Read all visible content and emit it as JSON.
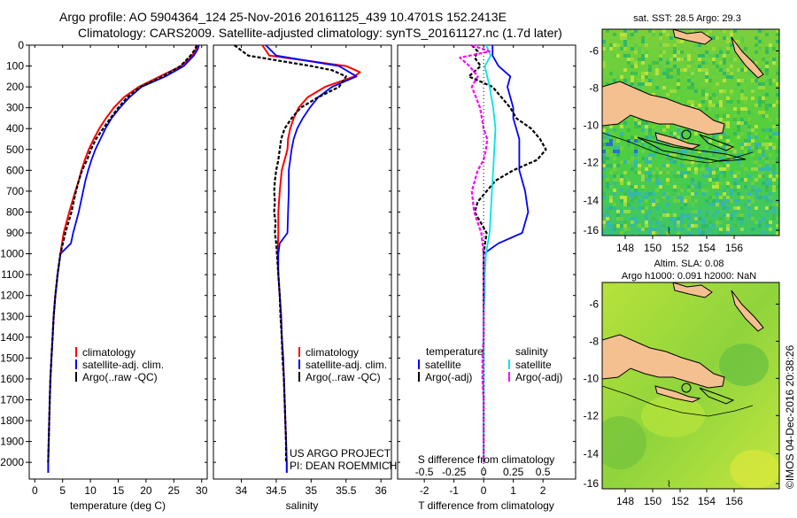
{
  "header": {
    "line1": "Argo profile: AO 5904364_124 25-Nov-2016 20161125_439 10.4701S 152.2413E",
    "line2": "Climatology: CARS2009. Satellite-adjusted climatology: synTS_20161127.nc (1.7d later)"
  },
  "colors": {
    "climatology": "#ff0000",
    "satellite": "#0000ff",
    "argo": "#000000",
    "sat_sal": "#00e5e5",
    "argo_sal": "#ff00ff",
    "land": "#f5c090"
  },
  "chart_data": [
    {
      "type": "line",
      "id": "temperature",
      "xlabel": "temperature (deg C)",
      "ylabel": "",
      "xlim": [
        -1,
        31
      ],
      "ylim": [
        2080,
        0
      ],
      "xticks": [
        0,
        5,
        10,
        15,
        20,
        25,
        30
      ],
      "yticks": [
        0,
        100,
        200,
        300,
        400,
        500,
        600,
        700,
        800,
        900,
        1000,
        1100,
        1200,
        1300,
        1400,
        1500,
        1600,
        1700,
        1800,
        1900,
        2000
      ],
      "legend": [
        "climatology",
        "satellite-adj. clim.",
        "Argo(..raw -QC)"
      ],
      "series": [
        {
          "name": "climatology",
          "depth": [
            0,
            20,
            50,
            100,
            150,
            200,
            250,
            300,
            350,
            400,
            450,
            500,
            550,
            600,
            650,
            700,
            800,
            900,
            1000,
            1100,
            1200,
            1300,
            1400,
            1500,
            1600,
            1700,
            1800,
            1900,
            2000,
            2050
          ],
          "values": [
            29.2,
            29.0,
            28.3,
            26.3,
            22.5,
            18.7,
            16.0,
            14.2,
            12.8,
            11.6,
            10.6,
            9.7,
            9.0,
            8.4,
            7.9,
            7.3,
            6.2,
            5.2,
            4.6,
            4.1,
            3.7,
            3.4,
            3.2,
            3.0,
            2.8,
            2.7,
            2.6,
            2.5,
            2.4,
            2.4
          ]
        },
        {
          "name": "satellite-adj. clim.",
          "depth": [
            0,
            20,
            50,
            100,
            150,
            200,
            250,
            300,
            350,
            400,
            450,
            500,
            550,
            600,
            650,
            700,
            800,
            900,
            950,
            1000,
            1100,
            1200,
            1300,
            1400,
            1500,
            1600,
            1700,
            1800,
            1900,
            2000,
            2050
          ],
          "values": [
            29.5,
            29.3,
            28.6,
            26.8,
            23.5,
            19.2,
            17.0,
            15.3,
            13.8,
            12.7,
            11.8,
            10.9,
            10.2,
            9.6,
            9.1,
            8.7,
            7.9,
            6.9,
            6.5,
            4.6,
            4.1,
            3.7,
            3.4,
            3.2,
            3.0,
            2.8,
            2.7,
            2.6,
            2.5,
            2.4,
            2.4
          ]
        },
        {
          "name": "Argo(..raw -QC)",
          "depth": [
            0,
            20,
            50,
            100,
            150,
            200,
            250,
            300,
            350,
            400,
            450,
            500,
            550,
            600,
            650,
            700,
            800,
            900,
            1000,
            1100,
            1200,
            1300,
            1400,
            1500,
            1600,
            1700,
            1800,
            1900,
            2000
          ],
          "values": [
            29.1,
            28.8,
            28.0,
            26.2,
            23.0,
            19.0,
            16.6,
            15.0,
            13.6,
            12.3,
            11.0,
            10.1,
            9.4,
            8.5,
            7.9,
            7.4,
            6.6,
            5.5,
            4.6,
            4.1,
            3.7,
            3.4,
            3.2,
            3.0,
            2.8,
            2.7,
            2.6,
            2.5,
            2.4
          ]
        }
      ]
    },
    {
      "type": "line",
      "id": "salinity",
      "xlabel": "salinity",
      "xlim": [
        33.6,
        36.15
      ],
      "ylim": [
        2080,
        0
      ],
      "xticks": [
        34,
        34.5,
        35,
        35.5,
        36
      ],
      "legend": [
        "climatology",
        "satellite-adj. clim.",
        "Argo(..raw -QC)"
      ],
      "series": [
        {
          "name": "climatology",
          "depth": [
            0,
            50,
            100,
            130,
            150,
            200,
            250,
            300,
            350,
            400,
            450,
            500,
            550,
            600,
            700,
            800,
            900,
            1000,
            1100,
            1200,
            1300,
            1400,
            1500,
            1600,
            1700,
            1800,
            1900,
            2000,
            2050
          ],
          "values": [
            34.3,
            34.4,
            35.5,
            35.7,
            35.62,
            35.2,
            34.95,
            34.82,
            34.75,
            34.7,
            34.67,
            34.66,
            34.62,
            34.58,
            34.55,
            34.53,
            34.53,
            34.52,
            34.53,
            34.55,
            34.57,
            34.58,
            34.6,
            34.61,
            34.62,
            34.63,
            34.64,
            34.65,
            34.65
          ]
        },
        {
          "name": "satellite-adj. clim.",
          "depth": [
            0,
            50,
            100,
            150,
            200,
            250,
            300,
            350,
            400,
            450,
            500,
            550,
            600,
            700,
            800,
            900,
            950,
            1000,
            1100,
            1200,
            1300,
            1400,
            1500,
            1600,
            1700,
            1800,
            1900,
            2000,
            2050
          ],
          "values": [
            34.35,
            34.5,
            35.4,
            35.65,
            35.3,
            35.1,
            34.98,
            34.88,
            34.8,
            34.75,
            34.72,
            34.7,
            34.68,
            34.68,
            34.67,
            34.66,
            34.55,
            34.53,
            34.53,
            34.55,
            34.57,
            34.58,
            34.6,
            34.61,
            34.62,
            34.63,
            34.64,
            34.65,
            34.65
          ]
        },
        {
          "name": "Argo(..raw -QC)",
          "depth": [
            0,
            50,
            100,
            120,
            150,
            200,
            250,
            300,
            350,
            400,
            450,
            500,
            550,
            600,
            650,
            700,
            750,
            800,
            850,
            900,
            950,
            1000,
            1100,
            1200,
            1300,
            1400,
            1500,
            1600,
            1700,
            1800,
            1900,
            2000
          ],
          "values": [
            33.9,
            34.1,
            35.0,
            35.3,
            35.5,
            35.4,
            35.1,
            34.85,
            34.72,
            34.62,
            34.57,
            34.55,
            34.53,
            34.5,
            34.48,
            34.47,
            34.48,
            34.47,
            34.49,
            34.48,
            34.5,
            34.51,
            34.53,
            34.55,
            34.56,
            34.58,
            34.59,
            34.61,
            34.62,
            34.63,
            34.64,
            34.64
          ]
        }
      ]
    },
    {
      "type": "line",
      "id": "difference",
      "xlabel": "T difference from climatology",
      "xlabel2": "S difference from climatology",
      "xlim": [
        -2.9,
        3.1
      ],
      "ylim": [
        2080,
        0
      ],
      "xticks": [
        -2,
        -1,
        0,
        1,
        2
      ],
      "xticks2": [
        -0.5,
        -0.25,
        0,
        0.25,
        0.5
      ],
      "legend_titles": [
        "temperature",
        "salinity"
      ],
      "legend": [
        "satellite",
        "Argo(-adj)",
        "satellite",
        "Argo(-adj)"
      ],
      "series": [
        {
          "name": "T satellite",
          "depth": [
            0,
            50,
            100,
            150,
            200,
            250,
            300,
            350,
            400,
            450,
            500,
            600,
            700,
            800,
            900,
            950,
            1000,
            1100,
            1200,
            1300,
            1400,
            1500,
            1600,
            1700,
            1800,
            1900,
            2000
          ],
          "values": [
            0.3,
            0.3,
            0.5,
            0.9,
            0.8,
            0.9,
            1.0,
            1.0,
            1.1,
            1.2,
            1.2,
            1.2,
            1.4,
            1.5,
            1.3,
            0.5,
            0,
            0,
            0,
            0,
            0,
            0,
            0,
            0,
            0,
            0,
            0
          ]
        },
        {
          "name": "T Argo(-adj)",
          "depth": [
            0,
            30,
            60,
            100,
            150,
            200,
            250,
            300,
            350,
            400,
            450,
            500,
            550,
            600,
            650,
            700,
            750,
            800,
            850,
            900,
            1000,
            1100,
            1200,
            1300,
            1400,
            1500,
            1600,
            1700,
            1800,
            1900,
            2000
          ],
          "values": [
            -0.4,
            -0.2,
            -0.3,
            -0.1,
            -0.5,
            0.3,
            0.6,
            0.9,
            1.1,
            1.6,
            1.9,
            2.1,
            1.8,
            1.0,
            0.4,
            0.1,
            -0.2,
            -0.3,
            -0.1,
            0.1,
            0,
            0,
            0,
            0,
            0,
            0,
            0,
            0,
            0,
            0,
            0
          ]
        },
        {
          "name": "S satellite",
          "depth": [
            0,
            50,
            100,
            150,
            200,
            300,
            400,
            500,
            600,
            700,
            800,
            900,
            1000,
            1100,
            1200,
            1300,
            1400,
            1500,
            1600,
            1700,
            1800,
            1900,
            2000
          ],
          "values": [
            0.02,
            0.06,
            0.01,
            0.03,
            0.05,
            0.08,
            0.1,
            0.09,
            0.08,
            0.07,
            0.06,
            0.05,
            0.02,
            0.01,
            0.01,
            0,
            0,
            0,
            0,
            0,
            0,
            0,
            0
          ]
        },
        {
          "name": "S Argo(-adj)",
          "depth": [
            0,
            30,
            60,
            100,
            150,
            200,
            300,
            400,
            450,
            500,
            550,
            600,
            700,
            800,
            900,
            1000,
            1100,
            1200,
            1300,
            1400,
            1500,
            1600,
            1700,
            1800,
            1900,
            2000
          ],
          "values": [
            -0.1,
            0.05,
            -0.2,
            -0.12,
            -0.05,
            -0.1,
            -0.03,
            0.0,
            0.03,
            0.02,
            0.0,
            -0.05,
            -0.1,
            -0.08,
            -0.02,
            0,
            0,
            0,
            0,
            0,
            -0.01,
            -0.01,
            0,
            0,
            0,
            0
          ]
        }
      ]
    }
  ],
  "annotations": {
    "project": "US ARGO PROJECT",
    "pi": "PI: DEAN ROEMMICH"
  },
  "maps": {
    "sst_title": "sat. SST: 28.5  Argo: 29.3",
    "sla_title1": "Altim. SLA: 0.08",
    "sla_title2": "Argo h1000: 0.091  h2000: NaN",
    "lon_ticks": [
      "148",
      "150",
      "152",
      "154",
      "156"
    ],
    "lat_ticks": [
      "-6",
      "-8",
      "-10",
      "-12",
      "-14",
      "-16"
    ],
    "footer": "©IMOS 04-Dec-2016 20:38:26"
  }
}
